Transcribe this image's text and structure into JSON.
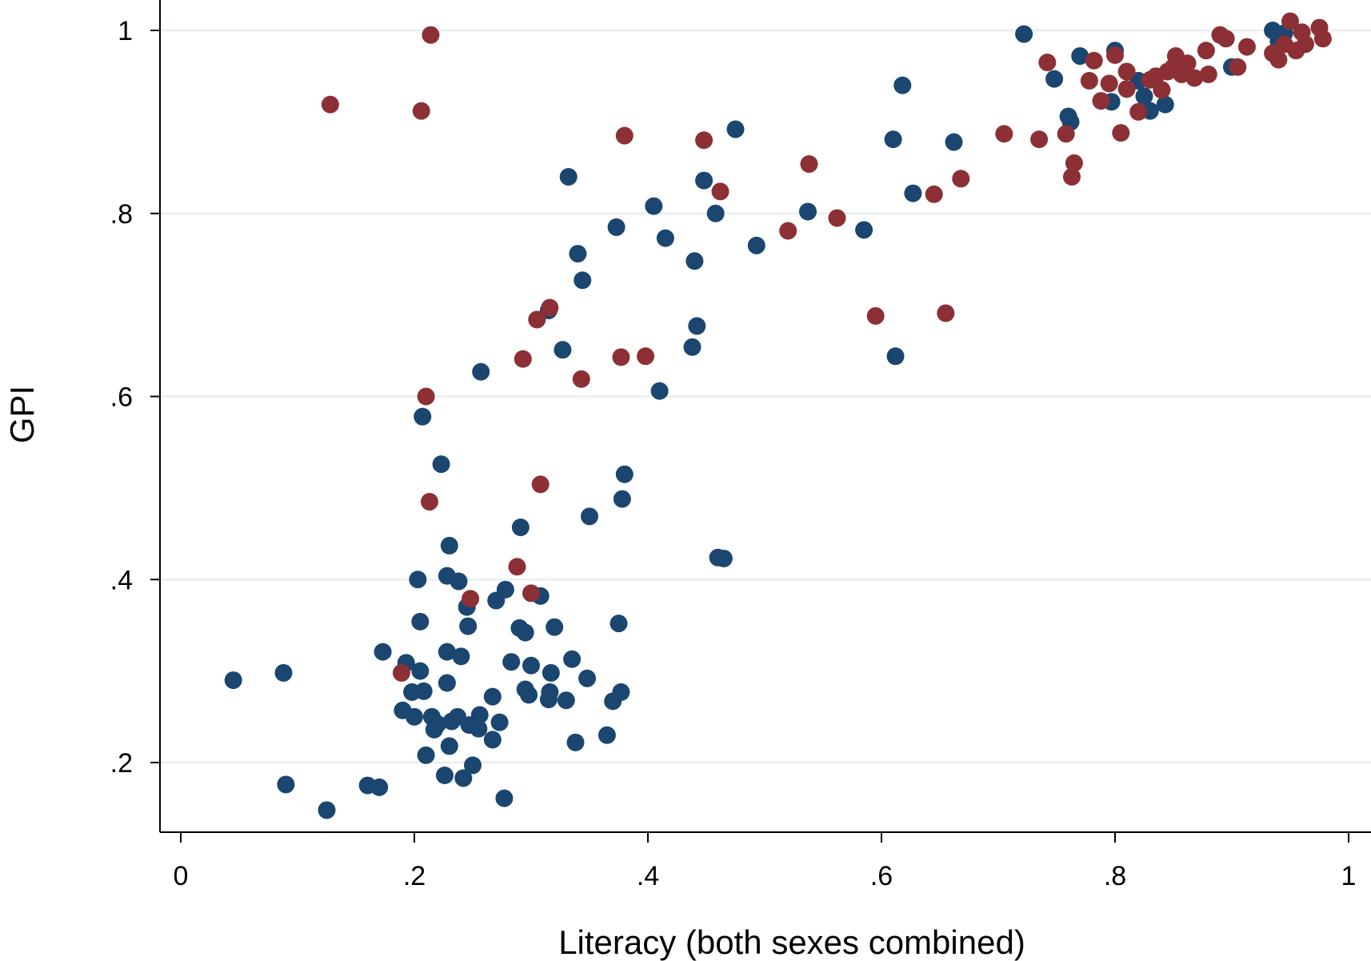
{
  "chart_data": {
    "type": "scatter",
    "title": "",
    "xlabel": "Literacy (both sexes combined)",
    "ylabel": "GPI",
    "xlim": [
      0,
      1
    ],
    "ylim": [
      0.12,
      1.04
    ],
    "x_ticks": [
      0,
      0.2,
      0.4,
      0.6,
      0.8,
      1
    ],
    "x_tick_labels": [
      "0",
      ".2",
      ".4",
      ".6",
      ".8",
      "1"
    ],
    "y_ticks": [
      0.2,
      0.4,
      0.6,
      0.8,
      1
    ],
    "y_tick_labels": [
      ".2",
      ".4",
      ".6",
      ".8",
      "1"
    ],
    "grid": "horizontal",
    "legend": "none",
    "series": [
      {
        "color": "#1a4670",
        "points": [
          [
            0.045,
            0.29
          ],
          [
            0.088,
            0.298
          ],
          [
            0.09,
            0.176
          ],
          [
            0.125,
            0.148
          ],
          [
            0.16,
            0.175
          ],
          [
            0.17,
            0.173
          ],
          [
            0.173,
            0.321
          ],
          [
            0.19,
            0.257
          ],
          [
            0.193,
            0.309
          ],
          [
            0.198,
            0.277
          ],
          [
            0.2,
            0.25
          ],
          [
            0.203,
            0.4
          ],
          [
            0.205,
            0.354
          ],
          [
            0.205,
            0.3
          ],
          [
            0.207,
            0.578
          ],
          [
            0.208,
            0.278
          ],
          [
            0.21,
            0.208
          ],
          [
            0.215,
            0.25
          ],
          [
            0.217,
            0.236
          ],
          [
            0.22,
            0.242
          ],
          [
            0.223,
            0.526
          ],
          [
            0.226,
            0.186
          ],
          [
            0.228,
            0.287
          ],
          [
            0.228,
            0.321
          ],
          [
            0.228,
            0.404
          ],
          [
            0.23,
            0.437
          ],
          [
            0.23,
            0.218
          ],
          [
            0.232,
            0.245
          ],
          [
            0.237,
            0.25
          ],
          [
            0.238,
            0.398
          ],
          [
            0.24,
            0.316
          ],
          [
            0.242,
            0.183
          ],
          [
            0.245,
            0.37
          ],
          [
            0.246,
            0.349
          ],
          [
            0.247,
            0.241
          ],
          [
            0.25,
            0.197
          ],
          [
            0.255,
            0.237
          ],
          [
            0.256,
            0.252
          ],
          [
            0.257,
            0.627
          ],
          [
            0.267,
            0.272
          ],
          [
            0.267,
            0.225
          ],
          [
            0.27,
            0.377
          ],
          [
            0.273,
            0.244
          ],
          [
            0.277,
            0.161
          ],
          [
            0.278,
            0.389
          ],
          [
            0.283,
            0.31
          ],
          [
            0.29,
            0.347
          ],
          [
            0.291,
            0.457
          ],
          [
            0.295,
            0.342
          ],
          [
            0.295,
            0.28
          ],
          [
            0.298,
            0.274
          ],
          [
            0.3,
            0.306
          ],
          [
            0.308,
            0.382
          ],
          [
            0.315,
            0.694
          ],
          [
            0.315,
            0.269
          ],
          [
            0.316,
            0.277
          ],
          [
            0.317,
            0.298
          ],
          [
            0.32,
            0.348
          ],
          [
            0.327,
            0.651
          ],
          [
            0.33,
            0.268
          ],
          [
            0.332,
            0.84
          ],
          [
            0.335,
            0.313
          ],
          [
            0.338,
            0.222
          ],
          [
            0.34,
            0.756
          ],
          [
            0.344,
            0.727
          ],
          [
            0.348,
            0.292
          ],
          [
            0.35,
            0.469
          ],
          [
            0.365,
            0.23
          ],
          [
            0.37,
            0.267
          ],
          [
            0.373,
            0.785
          ],
          [
            0.375,
            0.352
          ],
          [
            0.377,
            0.277
          ],
          [
            0.378,
            0.488
          ],
          [
            0.38,
            0.515
          ],
          [
            0.405,
            0.808
          ],
          [
            0.41,
            0.606
          ],
          [
            0.415,
            0.773
          ],
          [
            0.438,
            0.654
          ],
          [
            0.44,
            0.748
          ],
          [
            0.442,
            0.677
          ],
          [
            0.448,
            0.836
          ],
          [
            0.458,
            0.8
          ],
          [
            0.46,
            0.424
          ],
          [
            0.465,
            0.423
          ],
          [
            0.475,
            0.892
          ],
          [
            0.493,
            0.765
          ],
          [
            0.537,
            0.802
          ],
          [
            0.585,
            0.782
          ],
          [
            0.61,
            0.881
          ],
          [
            0.612,
            0.644
          ],
          [
            0.618,
            0.94
          ],
          [
            0.627,
            0.822
          ],
          [
            0.662,
            0.878
          ],
          [
            0.722,
            0.996
          ],
          [
            0.748,
            0.947
          ],
          [
            0.76,
            0.906
          ],
          [
            0.762,
            0.9
          ],
          [
            0.77,
            0.972
          ],
          [
            0.797,
            0.922
          ],
          [
            0.8,
            0.978
          ],
          [
            0.82,
            0.945
          ],
          [
            0.825,
            0.928
          ],
          [
            0.83,
            0.912
          ],
          [
            0.84,
            0.935
          ],
          [
            0.843,
            0.919
          ],
          [
            0.9,
            0.96
          ],
          [
            0.935,
            1.0
          ],
          [
            0.94,
            0.988
          ],
          [
            0.945,
            0.997
          ]
        ]
      },
      {
        "color": "#8c3035",
        "points": [
          [
            0.128,
            0.919
          ],
          [
            0.189,
            0.298
          ],
          [
            0.206,
            0.912
          ],
          [
            0.21,
            0.6
          ],
          [
            0.213,
            0.485
          ],
          [
            0.214,
            0.995
          ],
          [
            0.248,
            0.379
          ],
          [
            0.288,
            0.414
          ],
          [
            0.293,
            0.641
          ],
          [
            0.3,
            0.385
          ],
          [
            0.305,
            0.684
          ],
          [
            0.308,
            0.504
          ],
          [
            0.316,
            0.697
          ],
          [
            0.343,
            0.619
          ],
          [
            0.377,
            0.643
          ],
          [
            0.38,
            0.885
          ],
          [
            0.398,
            0.644
          ],
          [
            0.448,
            0.88
          ],
          [
            0.462,
            0.824
          ],
          [
            0.52,
            0.781
          ],
          [
            0.538,
            0.854
          ],
          [
            0.562,
            0.795
          ],
          [
            0.595,
            0.688
          ],
          [
            0.645,
            0.821
          ],
          [
            0.655,
            0.691
          ],
          [
            0.668,
            0.838
          ],
          [
            0.705,
            0.887
          ],
          [
            0.735,
            0.881
          ],
          [
            0.742,
            0.965
          ],
          [
            0.758,
            0.887
          ],
          [
            0.763,
            0.84
          ],
          [
            0.765,
            0.855
          ],
          [
            0.778,
            0.945
          ],
          [
            0.782,
            0.967
          ],
          [
            0.788,
            0.923
          ],
          [
            0.795,
            0.942
          ],
          [
            0.8,
            0.973
          ],
          [
            0.805,
            0.888
          ],
          [
            0.81,
            0.955
          ],
          [
            0.81,
            0.936
          ],
          [
            0.82,
            0.911
          ],
          [
            0.83,
            0.946
          ],
          [
            0.835,
            0.95
          ],
          [
            0.84,
            0.935
          ],
          [
            0.845,
            0.955
          ],
          [
            0.85,
            0.96
          ],
          [
            0.852,
            0.972
          ],
          [
            0.857,
            0.952
          ],
          [
            0.862,
            0.964
          ],
          [
            0.868,
            0.948
          ],
          [
            0.878,
            0.978
          ],
          [
            0.88,
            0.952
          ],
          [
            0.89,
            0.995
          ],
          [
            0.895,
            0.991
          ],
          [
            0.905,
            0.96
          ],
          [
            0.913,
            0.982
          ],
          [
            0.935,
            0.975
          ],
          [
            0.94,
            0.968
          ],
          [
            0.945,
            0.985
          ],
          [
            0.95,
            1.01
          ],
          [
            0.955,
            0.978
          ],
          [
            0.96,
            0.998
          ],
          [
            0.963,
            0.985
          ],
          [
            0.975,
            1.003
          ],
          [
            0.978,
            0.991
          ]
        ]
      }
    ]
  }
}
